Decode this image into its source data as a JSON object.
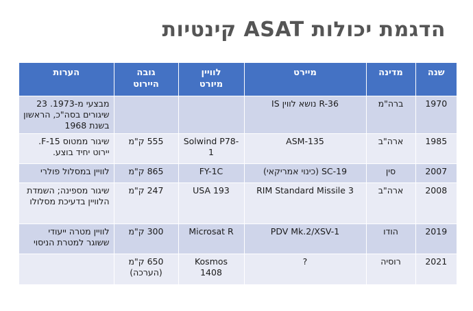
{
  "title": "הדגמת יכולות ASAT קינטיות",
  "headers": {
    "year": "שנה",
    "country": "מדינה",
    "interceptor": "מיירט",
    "target_line1": "לוויין",
    "target_line2": "מיורט",
    "altitude_line1": "גובה",
    "altitude_line2": "היירוט",
    "notes": "הערות"
  },
  "rows": [
    {
      "year": "1970",
      "country": "ברה\"מ",
      "interceptor": "R-36 נושא לווין IS",
      "target": "",
      "altitude": "",
      "notes": "מבצעי מ-1973. 23 שיגורים בסה\"כ, הראשון בשנת 1968"
    },
    {
      "year": "1985",
      "country": "ארה\"ב",
      "interceptor": "ASM-135",
      "target": "Solwind P78-1",
      "altitude": "555 ק\"מ",
      "notes": "שיגור ממטוס F-15. יירוט יחיד בוצע."
    },
    {
      "year": "2007",
      "country": "סין",
      "interceptor": "SC-19 (כינוי אמריקאי)",
      "target": "FY-1C",
      "altitude": "865 ק\"מ",
      "notes": "לוויין במסלול פולרי"
    },
    {
      "year": "2008",
      "country": "ארה\"ב",
      "interceptor": "RIM Standard Missile 3",
      "target": "USA 193",
      "altitude": "247 ק\"מ",
      "notes": "שיגור מספינה; השמדת הלוויין בדעיכת מסלולו"
    },
    {
      "year": "2019",
      "country": "הודו",
      "interceptor": "PDV Mk.2/XSV-1",
      "target": "Microsat R",
      "altitude": "300 ק\"מ",
      "notes": "לוויין מטרה ייעודי ששוגר למטרת הניסוי"
    },
    {
      "year": "2021",
      "country": "רוסיה",
      "interceptor": "?",
      "target": "Kosmos 1408",
      "altitude": "650 ק\"מ (הערכה)",
      "notes": ""
    }
  ]
}
